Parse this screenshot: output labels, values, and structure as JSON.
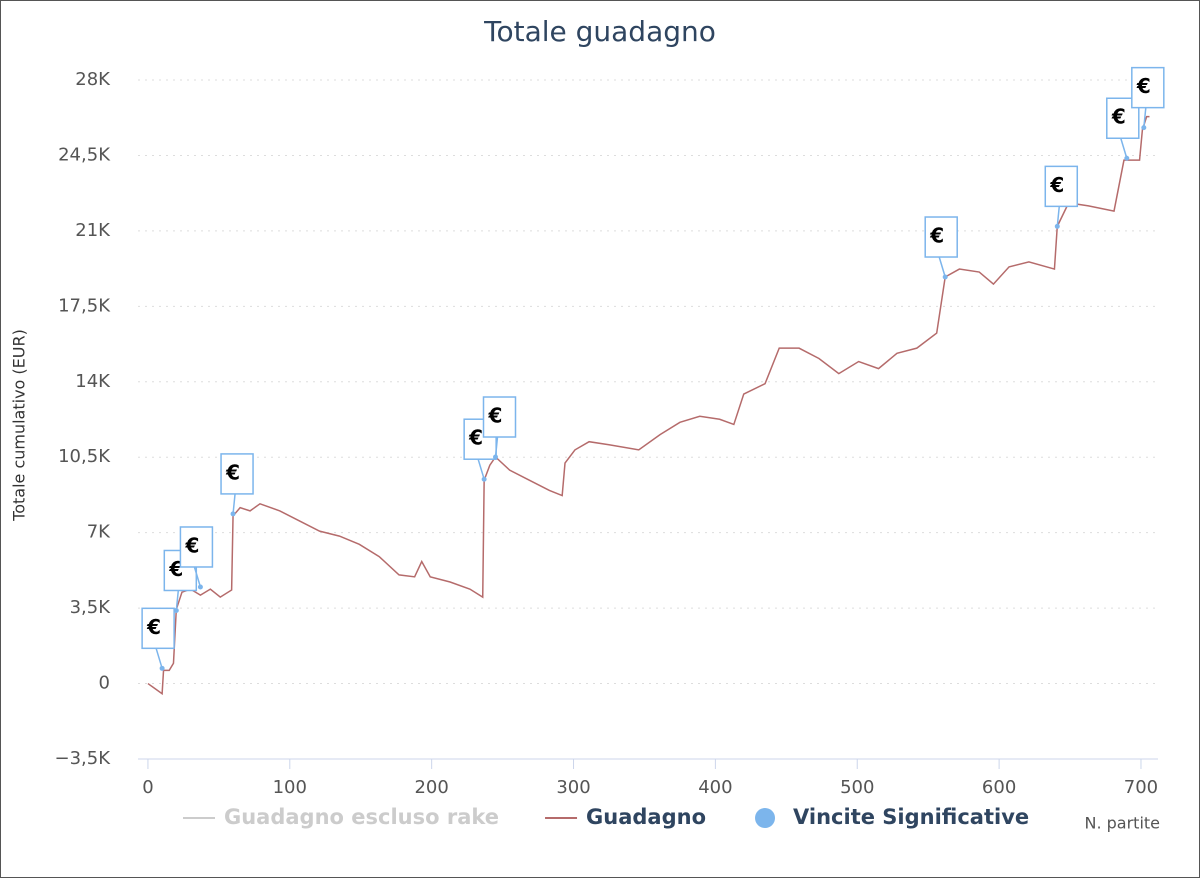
{
  "chart_data": {
    "type": "line",
    "title": "Totale guadagno",
    "y_label": "Totale cumulativo (EUR)",
    "x_label": "N. partite",
    "xlim": [
      -7,
      712
    ],
    "xticks": [
      0,
      100,
      200,
      300,
      400,
      500,
      600,
      700
    ],
    "ylim": [
      -3500,
      28000
    ],
    "yticks": [
      {
        "value": -3500,
        "label": "−3,5K"
      },
      0,
      {
        "value": 3500,
        "label": "3,5K"
      },
      {
        "value": 7000,
        "label": "7K"
      },
      {
        "value": 10500,
        "label": "10,5K"
      },
      {
        "value": 14000,
        "label": "14K"
      },
      {
        "value": 17500,
        "label": "17,5K"
      },
      {
        "value": 21000,
        "label": "21K"
      },
      {
        "value": 24500,
        "label": "24,5K"
      },
      {
        "value": 28000,
        "label": "28K"
      }
    ],
    "grid": true,
    "flag_label": "€",
    "series": [
      {
        "name": "Guadagno escluso rake",
        "color": "#cccccc",
        "visible": false,
        "x": [],
        "values": []
      },
      {
        "name": "Guadagno",
        "color": "#b56b6b",
        "visible": true,
        "x": [
          0,
          5,
          10,
          11,
          15,
          18,
          20,
          24,
          30,
          37,
          44,
          51,
          59,
          60,
          65,
          72,
          79,
          93,
          107,
          121,
          135,
          149,
          163,
          177,
          188,
          193,
          199,
          213,
          227,
          236,
          237,
          241,
          245,
          255,
          269,
          283,
          292,
          294,
          301,
          311,
          325,
          346,
          361,
          375,
          389,
          403,
          413,
          420,
          435,
          445,
          459,
          473,
          487,
          501,
          515,
          528,
          542,
          556,
          562,
          572,
          586,
          596,
          607,
          621,
          639,
          641,
          649,
          663,
          681,
          688,
          699,
          701,
          704,
          706
        ],
        "values": [
          0,
          -235,
          -470,
          610,
          610,
          940,
          3440,
          4240,
          4380,
          4100,
          4380,
          4010,
          4340,
          7780,
          8160,
          8010,
          8340,
          8010,
          7540,
          7070,
          6840,
          6460,
          5890,
          5040,
          4950,
          5660,
          4950,
          4710,
          4380,
          4010,
          9430,
          10130,
          10510,
          9900,
          9430,
          8960,
          8720,
          10230,
          10840,
          11220,
          11080,
          10840,
          11550,
          12120,
          12400,
          12260,
          12020,
          13430,
          13910,
          15560,
          15560,
          15080,
          14380,
          14940,
          14610,
          15320,
          15560,
          16260,
          18860,
          19230,
          19090,
          18530,
          19330,
          19560,
          19230,
          21210,
          22300,
          22160,
          21920,
          24280,
          24280,
          25690,
          26300,
          26300
        ]
      },
      {
        "name": "Vincite Significative",
        "type": "flags",
        "color": "#7cb5ec",
        "visible": true,
        "x": [
          10,
          20,
          37,
          60,
          237,
          245,
          562,
          641,
          690,
          702
        ],
        "values": [
          707,
          3390,
          4480,
          7870,
          9480,
          10510,
          18860,
          21210,
          24370,
          25790
        ]
      }
    ]
  }
}
